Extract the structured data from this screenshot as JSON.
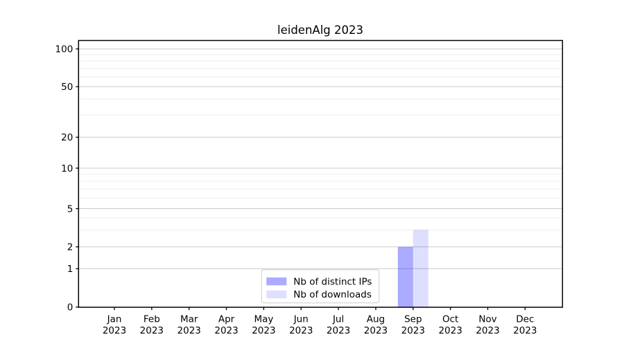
{
  "chart_data": {
    "type": "bar",
    "title": "leidenAlg 2023",
    "categories": [
      "Jan 2023",
      "Feb 2023",
      "Mar 2023",
      "Apr 2023",
      "May 2023",
      "Jun 2023",
      "Jul 2023",
      "Aug 2023",
      "Sep 2023",
      "Oct 2023",
      "Nov 2023",
      "Dec 2023"
    ],
    "series": [
      {
        "name": "Nb of distinct IPs",
        "color": "rgba(0,0,255,0.33)",
        "values": [
          0,
          0,
          0,
          0,
          0,
          0,
          0,
          0,
          2,
          0,
          0,
          0
        ]
      },
      {
        "name": "Nb of downloads",
        "color": "rgba(0,0,255,0.13)",
        "values": [
          0,
          0,
          0,
          0,
          0,
          0,
          0,
          0,
          3,
          0,
          0,
          0
        ]
      }
    ],
    "xlabel": "",
    "ylabel": "",
    "y_axis": {
      "scale": "log-like (0 shown at base)",
      "ticks": [
        0,
        1,
        2,
        5,
        10,
        20,
        50,
        100
      ],
      "minor_ticks": [
        3,
        4,
        6,
        7,
        8,
        9,
        30,
        40,
        60,
        70,
        80,
        90
      ],
      "ylim": [
        0,
        115
      ]
    },
    "grid": "on (horizontal major + log minor)",
    "legend": {
      "position": "lower center inside plot",
      "entries": [
        "Nb of distinct IPs",
        "Nb of downloads"
      ]
    },
    "colors": {
      "bar_distinct_ips": "rgba(0,0,255,0.33)",
      "bar_downloads": "rgba(0,0,255,0.13)",
      "major_grid": "#c9c9c9",
      "minor_grid": "#ededed",
      "spine": "#000000",
      "tick_label": "#000000",
      "legend_border": "#cccccc",
      "background": "#ffffff"
    }
  }
}
